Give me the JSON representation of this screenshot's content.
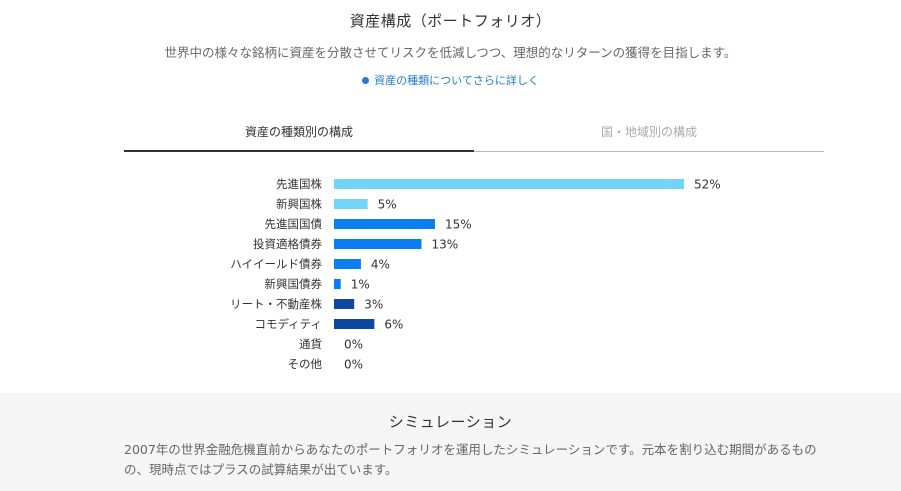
{
  "header": {
    "title": "資産構成（ポートフォリオ）",
    "subtitle": "世界中の様々な銘柄に資産を分散させてリスクを低減しつつ、理想的なリターンの獲得を目指します。",
    "more_link": "資産の種類についてさらに詳しく"
  },
  "tabs": [
    {
      "label": "資産の種類別の構成",
      "active": true
    },
    {
      "label": "国・地域別の構成",
      "active": false
    }
  ],
  "chart_data": {
    "type": "bar",
    "orientation": "horizontal",
    "categories": [
      "先進国株",
      "新興国株",
      "先進国国債",
      "投資適格債券",
      "ハイイールド債券",
      "新興国債券",
      "リート・不動産株",
      "コモディティ",
      "通貨",
      "その他"
    ],
    "values": [
      52,
      5,
      15,
      13,
      4,
      1,
      3,
      6,
      0,
      0
    ],
    "value_labels": [
      "52%",
      "5%",
      "15%",
      "13%",
      "4%",
      "1%",
      "3%",
      "6%",
      "0%",
      "0%"
    ],
    "colors": [
      "#72d4f7",
      "#72d4f7",
      "#0a7ef0",
      "#0a7ef0",
      "#0a7ef0",
      "#0a7ef0",
      "#0d47a1",
      "#0d47a1",
      "#0d47a1",
      "#0d47a1"
    ],
    "xlim": [
      0,
      52
    ],
    "grid": false,
    "legend": "none"
  },
  "simulation": {
    "title": "シミュレーション",
    "description": "2007年の世界金融危機直前からあなたのポートフォリオを運用したシミュレーションです。元本を割り込む期間があるものの、現時点ではプラスの試算結果が出ています。"
  }
}
